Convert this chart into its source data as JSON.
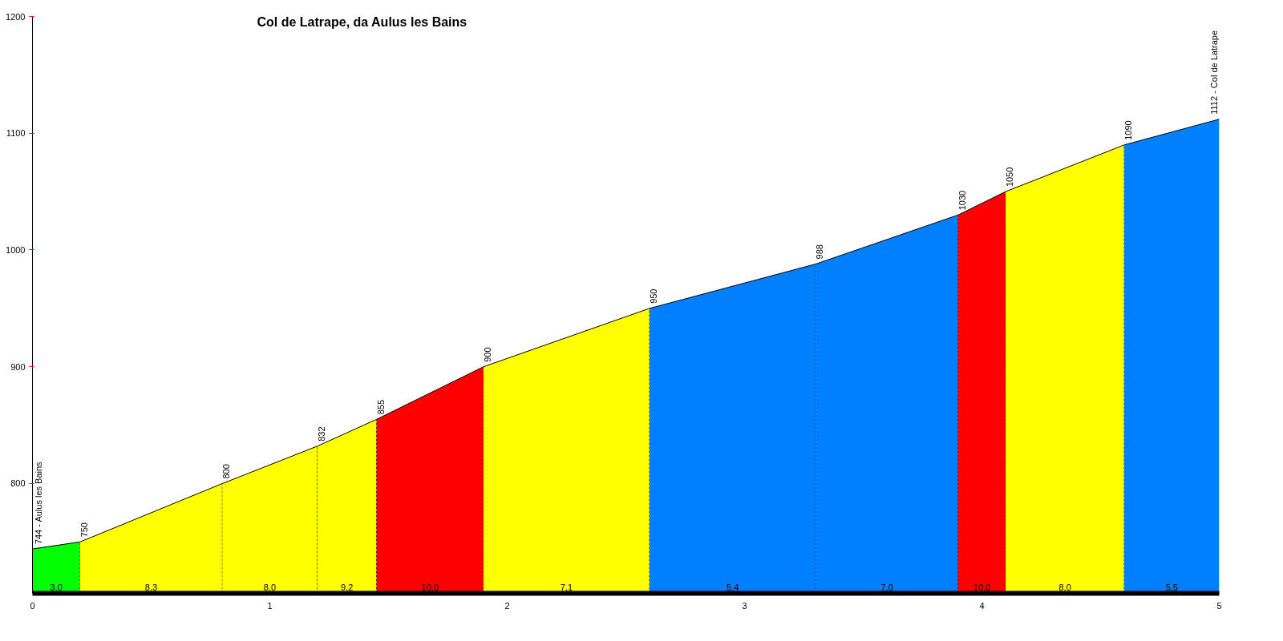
{
  "chart_data": {
    "type": "area",
    "title": "Col de Latrape, da Aulus les Bains",
    "series": [
      {
        "color": "#00ff00",
        "x": [
          0,
          0.2
        ],
        "values": [
          744,
          750
        ]
      },
      {
        "color": "#ffff00",
        "x": [
          0.2,
          0.8
        ],
        "values": [
          750,
          800
        ]
      },
      {
        "color": "#ffff00",
        "x": [
          0.8,
          1.2
        ],
        "values": [
          800,
          832
        ]
      },
      {
        "color": "#ffff00",
        "x": [
          1.2,
          1.45
        ],
        "values": [
          832,
          855
        ]
      },
      {
        "color": "#ff0000",
        "x": [
          1.45,
          1.9
        ],
        "values": [
          855,
          900
        ]
      },
      {
        "color": "#ffff00",
        "x": [
          1.9,
          2.6
        ],
        "values": [
          900,
          950
        ]
      },
      {
        "color": "#0080ff",
        "x": [
          2.6,
          3.3
        ],
        "values": [
          950,
          988
        ]
      },
      {
        "color": "#0080ff",
        "x": [
          3.3,
          3.9
        ],
        "values": [
          988,
          1030
        ]
      },
      {
        "color": "#ff0000",
        "x": [
          3.9,
          4.1
        ],
        "values": [
          1030,
          1050
        ]
      },
      {
        "color": "#ffff00",
        "x": [
          4.1,
          4.6
        ],
        "values": [
          1050,
          1090
        ]
      },
      {
        "color": "#0080ff",
        "x": [
          4.6,
          5
        ],
        "values": [
          1090,
          1112
        ]
      }
    ],
    "xlim": [
      0,
      5
    ],
    "xticks": [
      0,
      1,
      2,
      3,
      4,
      5
    ],
    "ylim": [
      706,
      1200
    ],
    "yticks": [
      800,
      900,
      1000,
      1100,
      1200
    ],
    "grid": false,
    "annotations": [
      {
        "text": "3,0",
        "x": 0.1,
        "y": 706
      },
      {
        "text": "8,3",
        "x": 0.5,
        "y": 706
      },
      {
        "text": "8,0",
        "x": 1.0,
        "y": 706
      },
      {
        "text": "9,2",
        "x": 1.325,
        "y": 706
      },
      {
        "text": "10,0",
        "x": 1.675,
        "y": 706
      },
      {
        "text": "7,1",
        "x": 2.25,
        "y": 706
      },
      {
        "text": "5,4",
        "x": 2.95,
        "y": 706
      },
      {
        "text": "7,0",
        "x": 3.6,
        "y": 706
      },
      {
        "text": "10,0",
        "x": 4.0,
        "y": 706
      },
      {
        "text": "8,0",
        "x": 4.35,
        "y": 706
      },
      {
        "text": "5,5",
        "x": 4.8,
        "y": 706
      },
      {
        "text": "744 - Aulus les Bains",
        "x": 0,
        "y": 744
      },
      {
        "text": "750",
        "x": 0.2,
        "y": 750
      },
      {
        "text": "800",
        "x": 0.8,
        "y": 800
      },
      {
        "text": "832",
        "x": 1.2,
        "y": 832
      },
      {
        "text": "855",
        "x": 1.45,
        "y": 855
      },
      {
        "text": "900",
        "x": 1.9,
        "y": 900
      },
      {
        "text": "950",
        "x": 2.6,
        "y": 950
      },
      {
        "text": "988",
        "x": 3.3,
        "y": 988
      },
      {
        "text": "1030",
        "x": 3.9,
        "y": 1030
      },
      {
        "text": "1050",
        "x": 4.1,
        "y": 1050
      },
      {
        "text": "1090",
        "x": 4.6,
        "y": 1090
      },
      {
        "text": "1112 - Col de Latrape",
        "x": 5,
        "y": 1112
      }
    ]
  }
}
